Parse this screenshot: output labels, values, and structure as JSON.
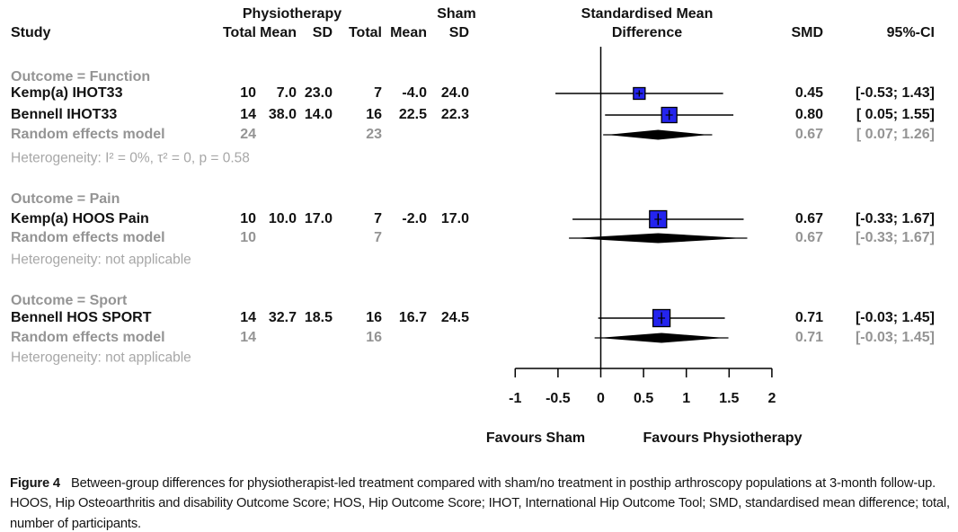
{
  "caption": {
    "label": "Figure 4",
    "text": "Between-group differences for physiotherapist-led treatment compared with sham/no treatment in posthip arthroscopy populations at 3-month follow-up. HOOS, Hip Osteoarthritis and disability Outcome Score; HOS, Hip Outcome Score; IHOT, International Hip Outcome Tool; SMD, standardised mean difference; total, number of participants."
  },
  "chart_data": {
    "type": "forest",
    "columns": {
      "study": "Study",
      "group1": "Physiotherapy",
      "group2": "Sham",
      "total": "Total",
      "mean": "Mean",
      "sd": "SD",
      "effect_line1": "Standardised Mean",
      "effect_line2": "Difference",
      "smd": "SMD",
      "ci": "95%-CI"
    },
    "x_axis": {
      "min": -1,
      "max": 2,
      "ticks": [
        -1,
        -0.5,
        0,
        0.5,
        1,
        1.5,
        2
      ],
      "zero_ref_line": 0,
      "left_label": "Favours Sham",
      "right_label": "Favours Physiotherapy"
    },
    "colors": {
      "marker_blue": "#2424ee",
      "line_black": "#000000",
      "gray_text": "#949494",
      "light_gray_text": "#a7a7a7"
    },
    "sections": [
      {
        "outcome_label": "Outcome = Function",
        "studies": [
          {
            "study": "Kemp(a) IHOT33",
            "g1_total": "10",
            "g1_mean": "7.0",
            "g1_sd": "23.0",
            "g2_total": "7",
            "g2_mean": "-4.0",
            "g2_sd": "24.0",
            "smd": 0.45,
            "ci_low": -0.53,
            "ci_high": 1.43,
            "smd_text": "0.45",
            "ci_text": "[-0.53; 1.43]",
            "marker_size": 13
          },
          {
            "study": "Bennell IHOT33",
            "g1_total": "14",
            "g1_mean": "38.0",
            "g1_sd": "14.0",
            "g2_total": "16",
            "g2_mean": "22.5",
            "g2_sd": "22.3",
            "smd": 0.8,
            "ci_low": 0.05,
            "ci_high": 1.55,
            "smd_text": "0.80",
            "ci_text": "[ 0.05; 1.55]",
            "marker_size": 17
          }
        ],
        "pooled": {
          "study": "Random effects model",
          "g1_total": "24",
          "g2_total": "23",
          "smd": 0.67,
          "ci_low": 0.07,
          "ci_high": 1.26,
          "smd_text": "0.67",
          "ci_text": "[ 0.07; 1.26]"
        },
        "heterogeneity": "Heterogeneity: I² = 0%, τ² = 0, p = 0.58"
      },
      {
        "outcome_label": "Outcome = Pain",
        "studies": [
          {
            "study": "Kemp(a) HOOS Pain",
            "g1_total": "10",
            "g1_mean": "10.0",
            "g1_sd": "17.0",
            "g2_total": "7",
            "g2_mean": "-2.0",
            "g2_sd": "17.0",
            "smd": 0.67,
            "ci_low": -0.33,
            "ci_high": 1.67,
            "smd_text": "0.67",
            "ci_text": "[-0.33; 1.67]",
            "marker_size": 19
          }
        ],
        "pooled": {
          "study": "Random effects model",
          "g1_total": "10",
          "g2_total": "7",
          "smd": 0.67,
          "ci_low": -0.33,
          "ci_high": 1.67,
          "smd_text": "0.67",
          "ci_text": "[-0.33; 1.67]"
        },
        "heterogeneity": "Heterogeneity: not applicable"
      },
      {
        "outcome_label": "Outcome = Sport",
        "studies": [
          {
            "study": "Bennell HOS SPORT",
            "g1_total": "14",
            "g1_mean": "32.7",
            "g1_sd": "18.5",
            "g2_total": "16",
            "g2_mean": "16.7",
            "g2_sd": "24.5",
            "smd": 0.71,
            "ci_low": -0.03,
            "ci_high": 1.45,
            "smd_text": "0.71",
            "ci_text": "[-0.03; 1.45]",
            "marker_size": 19
          }
        ],
        "pooled": {
          "study": "Random effects model",
          "g1_total": "14",
          "g2_total": "16",
          "smd": 0.71,
          "ci_low": -0.03,
          "ci_high": 1.45,
          "smd_text": "0.71",
          "ci_text": "[-0.03; 1.45]"
        },
        "heterogeneity": "Heterogeneity: not applicable"
      }
    ]
  }
}
